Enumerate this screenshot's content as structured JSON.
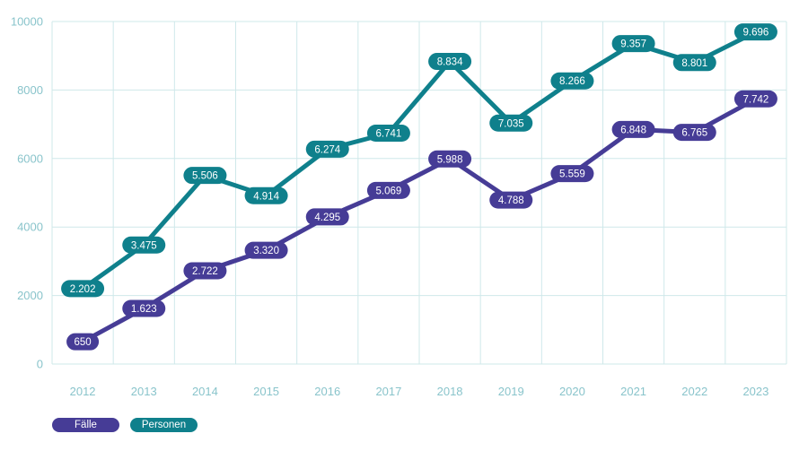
{
  "chart_data": {
    "type": "line",
    "x": [
      "2012",
      "2013",
      "2014",
      "2015",
      "2016",
      "2017",
      "2018",
      "2019",
      "2020",
      "2021",
      "2022",
      "2023"
    ],
    "series": [
      {
        "name": "Fälle",
        "color": "#463c96",
        "values": [
          650,
          1623,
          2722,
          3320,
          4295,
          5069,
          5988,
          4788,
          5559,
          6848,
          6765,
          7742
        ],
        "labels": [
          "650",
          "1.623",
          "2.722",
          "3.320",
          "4.295",
          "5.069",
          "5.988",
          "4.788",
          "5.559",
          "6.848",
          "6.765",
          "7.742"
        ]
      },
      {
        "name": "Personen",
        "color": "#0f808c",
        "values": [
          2202,
          3475,
          5506,
          4914,
          6274,
          6741,
          8834,
          7035,
          8266,
          9357,
          8801,
          9696
        ],
        "labels": [
          "2.202",
          "3.475",
          "5.506",
          "4.914",
          "6.274",
          "6.741",
          "8.834",
          "7.035",
          "8.266",
          "9.357",
          "8.801",
          "9.696"
        ]
      }
    ],
    "ylim": [
      0,
      10000
    ],
    "yticks": [
      "0",
      "2000",
      "4000",
      "6000",
      "8000",
      "10000"
    ],
    "grid": true,
    "legend_position": "bottom-left",
    "title": "",
    "xlabel": "",
    "ylabel": "",
    "colors": {
      "grid": "#cfe8ea",
      "axis_text": "#89c4cb",
      "label_text": "#ffffff",
      "background": "#ffffff"
    }
  }
}
